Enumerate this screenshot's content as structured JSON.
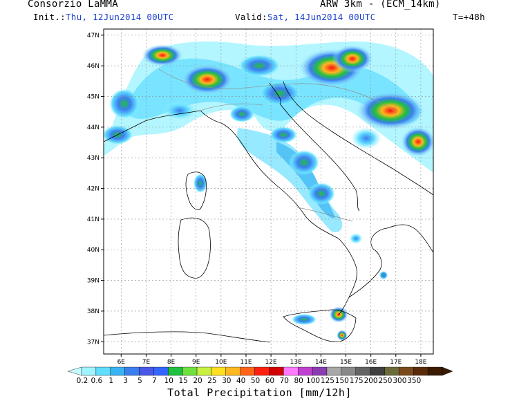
{
  "header": {
    "title": "Consorzio LaMMA",
    "model": "ARW 3km - (ECM_14km)",
    "init_label": "Init.:",
    "init_value": "Thu, 12Jun2014 00UTC",
    "valid_label": "Valid:",
    "valid_value": "Sat, 14Jun2014 00UTC",
    "lead_time": "T=+48h"
  },
  "map": {
    "lat_labels": [
      "47N",
      "46N",
      "45N",
      "44N",
      "43N",
      "42N",
      "41N",
      "40N",
      "39N",
      "38N",
      "37N"
    ],
    "lon_labels": [
      "6E",
      "7E",
      "8E",
      "9E",
      "10E",
      "11E",
      "12E",
      "13E",
      "14E",
      "15E",
      "16E",
      "17E",
      "18E"
    ],
    "lat_range": [
      36.6,
      47.2
    ],
    "lon_range": [
      5.3,
      18.5
    ],
    "grid": true
  },
  "colorbar": {
    "title": "Total Precipitation [mm/12h]",
    "levels": [
      "0.2",
      "0.6",
      "1",
      "3",
      "5",
      "7",
      "10",
      "15",
      "20",
      "25",
      "30",
      "40",
      "50",
      "60",
      "70",
      "80",
      "100",
      "125",
      "150",
      "175",
      "200",
      "250",
      "300",
      "350"
    ],
    "colors": [
      "#a0f4ff",
      "#60ddff",
      "#38b4f4",
      "#3a7ef0",
      "#4a58e8",
      "#3366ff",
      "#20c040",
      "#70e040",
      "#c8f040",
      "#ffe020",
      "#ffb820",
      "#ff6418",
      "#ff2010",
      "#d20000",
      "#ff7aff",
      "#c040d0",
      "#8a3cb0",
      "#a8a8a8",
      "#888888",
      "#646464",
      "#404040",
      "#6a6a3a",
      "#7a4a1a",
      "#5a2a0a",
      "#3a1a00"
    ]
  }
}
